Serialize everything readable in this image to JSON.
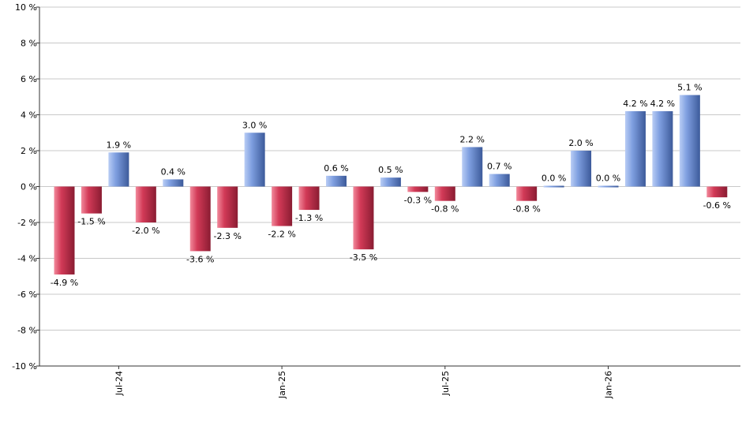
{
  "chart_data": {
    "type": "bar",
    "y_unit_suffix": " %",
    "ylim": [
      -10,
      10
    ],
    "y_ticks": [
      -10,
      -8,
      -6,
      -4,
      -2,
      0,
      2,
      4,
      6,
      8,
      10
    ],
    "y_tick_labels": [
      "-10 %",
      "-8 %",
      "-6 %",
      "-4 %",
      "-2 %",
      "0 %",
      "2 %",
      "4 %",
      "6 %",
      "8 %",
      "10 %"
    ],
    "grid": true,
    "x_tick_labels": [
      {
        "label": "Jul-24",
        "index": 2
      },
      {
        "label": "Jan-25",
        "index": 8
      },
      {
        "label": "Jul-25",
        "index": 14
      },
      {
        "label": "Jan-26",
        "index": 20
      }
    ],
    "values": [
      -4.9,
      -1.5,
      1.9,
      -2.0,
      0.4,
      -3.6,
      -2.3,
      3.0,
      -2.2,
      -1.3,
      0.6,
      -3.5,
      0.5,
      -0.3,
      -0.8,
      2.2,
      0.7,
      -0.8,
      0.0,
      2.0,
      0.0,
      4.2,
      4.2,
      5.1,
      -0.6
    ],
    "data_labels": [
      "-4.9 %",
      "-1.5 %",
      "1.9 %",
      "-2.0 %",
      "0.4 %",
      "-3.6 %",
      "-2.3 %",
      "3.0 %",
      "-2.2 %",
      "-1.3 %",
      "0.6 %",
      "-3.5 %",
      "0.5 %",
      "-0.3 %",
      "-0.8 %",
      "2.2 %",
      "0.7 %",
      "-0.8 %",
      "0.0 %",
      "2.0 %",
      "0.0 %",
      "4.2 %",
      "4.2 %",
      "5.1 %",
      "-0.6 %"
    ],
    "colors": {
      "positive_light": "#b9cdf5",
      "positive_mid": "#7f9fe0",
      "positive_dark": "#3c5a9a",
      "negative_light": "#f28a9c",
      "negative_mid": "#d23a57",
      "negative_dark": "#8a1c32",
      "grid": "#c8c8c8",
      "axis": "#333333"
    }
  }
}
